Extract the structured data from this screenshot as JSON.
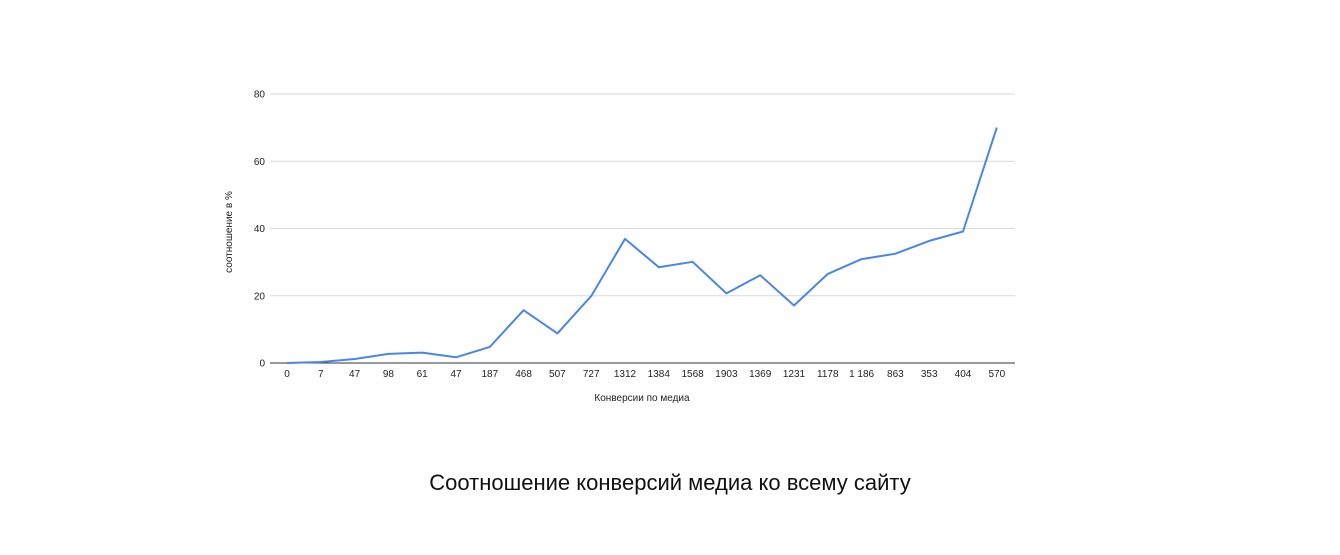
{
  "caption": "Соотношение конверсий медиа ко всему сайту",
  "colors": {
    "line": "#4a86e8",
    "grid": "#d9d9d9",
    "axis": "#333333"
  },
  "chart_data": {
    "type": "line",
    "title": "",
    "xlabel": "Конверсии по медиа",
    "ylabel": "соотношение в %",
    "ylim": [
      0,
      80
    ],
    "yticks": [
      0,
      20,
      40,
      60,
      80
    ],
    "grid": true,
    "categories": [
      "0",
      "7",
      "47",
      "98",
      "61",
      "47",
      "187",
      "468",
      "507",
      "727",
      "1312",
      "1384",
      "1568",
      "1903",
      "1369",
      "1231",
      "1178",
      "1 186",
      "863",
      "353",
      "404",
      "570"
    ],
    "series": [
      {
        "values": [
          0,
          0.3,
          1.2,
          2.7,
          3.1,
          1.7,
          4.8,
          15.7,
          8.8,
          19.9,
          36.9,
          28.5,
          30.1,
          20.7,
          26.1,
          17.1,
          26.5,
          30.9,
          32.5,
          36.3,
          39.1,
          70.0
        ]
      }
    ]
  }
}
